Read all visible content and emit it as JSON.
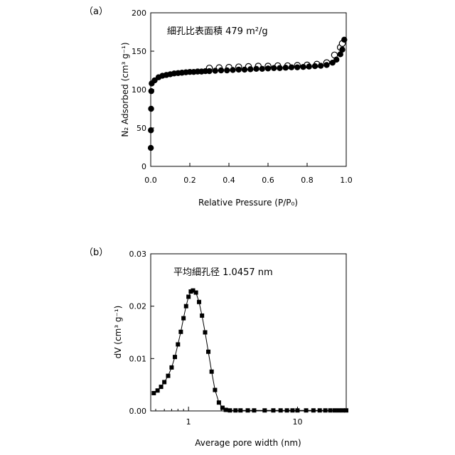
{
  "chart_data": [
    {
      "panel_label": "（a）",
      "type": "scatter",
      "annotation": "細孔比表面積 479 m²/g",
      "xlabel": "Relative Pressure (P/P₀)",
      "ylabel": "N₂ Adsorbed (cm³ g⁻¹)",
      "xlim": [
        0,
        1.0
      ],
      "ylim": [
        0,
        200
      ],
      "x_ticks": [
        "0.0",
        "0.2",
        "0.4",
        "0.6",
        "0.8",
        "1.0"
      ],
      "y_ticks": [
        "0",
        "50",
        "100",
        "150",
        "200"
      ],
      "series": [
        {
          "marker": "filled-circle",
          "x": [
            0.0005,
            0.001,
            0.002,
            0.003,
            0.005,
            0.02,
            0.04,
            0.06,
            0.08,
            0.1,
            0.12,
            0.14,
            0.16,
            0.18,
            0.2,
            0.22,
            0.24,
            0.26,
            0.28,
            0.3,
            0.33,
            0.36,
            0.39,
            0.42,
            0.45,
            0.48,
            0.51,
            0.54,
            0.57,
            0.6,
            0.63,
            0.66,
            0.69,
            0.72,
            0.75,
            0.78,
            0.81,
            0.84,
            0.87,
            0.9,
            0.93,
            0.95,
            0.97,
            0.98,
            0.99
          ],
          "y": [
            24,
            47,
            75,
            98,
            108,
            112,
            116,
            118,
            119,
            120,
            121,
            121.5,
            122,
            122.5,
            123,
            123,
            123.5,
            123.5,
            124,
            124,
            124.5,
            125,
            125,
            125.5,
            126,
            126,
            126.5,
            127,
            127,
            127.5,
            128,
            128,
            128.5,
            129,
            129,
            129.5,
            130,
            130.5,
            131,
            132,
            135,
            139,
            146,
            152,
            165
          ]
        },
        {
          "marker": "open-circle",
          "x": [
            0.3,
            0.35,
            0.4,
            0.45,
            0.5,
            0.55,
            0.6,
            0.65,
            0.7,
            0.75,
            0.8,
            0.85,
            0.9,
            0.94,
            0.97,
            0.98
          ],
          "y": [
            128,
            128.5,
            129,
            129.5,
            130,
            130.5,
            130.5,
            131,
            131,
            131.5,
            132,
            133,
            135,
            145,
            155,
            160
          ]
        }
      ]
    },
    {
      "panel_label": "（b）",
      "type": "line",
      "annotation": "平均細孔径 1.0457 nm",
      "xlabel": "Average pore width (nm)",
      "ylabel": "dV (cm³ g⁻¹)",
      "x_scale": "log",
      "xlim": [
        0.45,
        28
      ],
      "ylim": [
        0,
        0.03
      ],
      "x_ticks": [
        "1",
        "10"
      ],
      "y_ticks": [
        "0.00",
        "0.01",
        "0.02",
        "0.03"
      ],
      "series": [
        {
          "marker": "filled-square",
          "x": [
            0.48,
            0.52,
            0.56,
            0.6,
            0.65,
            0.7,
            0.75,
            0.8,
            0.85,
            0.9,
            0.95,
            1.0,
            1.05,
            1.1,
            1.17,
            1.25,
            1.33,
            1.42,
            1.52,
            1.63,
            1.75,
            1.9,
            2.05,
            2.2,
            2.4,
            2.7,
            3.0,
            3.5,
            4.0,
            5.0,
            6.0,
            7.0,
            8.0,
            9.0,
            10.0,
            12.0,
            14.0,
            16.0,
            18.0,
            20.0,
            22.0,
            24.0,
            26.0,
            28.0
          ],
          "y": [
            0.0034,
            0.0039,
            0.0046,
            0.0055,
            0.0067,
            0.0083,
            0.0103,
            0.0127,
            0.0151,
            0.0177,
            0.02,
            0.0218,
            0.0228,
            0.023,
            0.0226,
            0.0208,
            0.0182,
            0.015,
            0.0113,
            0.0075,
            0.004,
            0.0016,
            0.0006,
            0.0002,
            0.0001,
            0.0001,
            0.0001,
            0.0001,
            0.0001,
            0.0001,
            0.0001,
            0.0001,
            0.0001,
            0.0001,
            0.0001,
            0.0001,
            0.0001,
            0.0001,
            0.0001,
            0.0001,
            0.0001,
            0.0001,
            0.0001,
            0.0001
          ]
        }
      ]
    }
  ]
}
